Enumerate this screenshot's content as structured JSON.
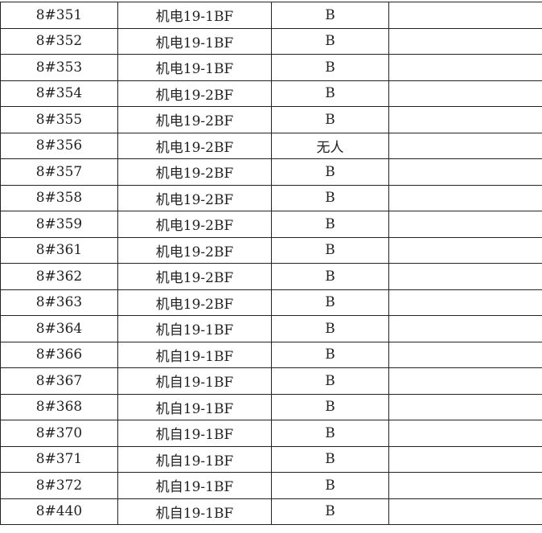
{
  "rows": [
    [
      "8#351",
      "机电19-1BF",
      "B",
      ""
    ],
    [
      "8#352",
      "机电19-1BF",
      "B",
      ""
    ],
    [
      "8#353",
      "机电19-1BF",
      "B",
      ""
    ],
    [
      "8#354",
      "机电19-2BF",
      "B",
      ""
    ],
    [
      "8#355",
      "机电19-2BF",
      "B",
      ""
    ],
    [
      "8#356",
      "机电19-2BF",
      "无人",
      ""
    ],
    [
      "8#357",
      "机电19-2BF",
      "B",
      ""
    ],
    [
      "8#358",
      "机电19-2BF",
      "B",
      ""
    ],
    [
      "8#359",
      "机电19-2BF",
      "B",
      ""
    ],
    [
      "8#361",
      "机电19-2BF",
      "B",
      ""
    ],
    [
      "8#362",
      "机电19-2BF",
      "B",
      ""
    ],
    [
      "8#363",
      "机电19-2BF",
      "B",
      ""
    ],
    [
      "8#364",
      "机自19-1BF",
      "B",
      ""
    ],
    [
      "8#366",
      "机自19-1BF",
      "B",
      ""
    ],
    [
      "8#367",
      "机自19-1BF",
      "B",
      ""
    ],
    [
      "8#368",
      "机自19-1BF",
      "B",
      ""
    ],
    [
      "8#370",
      "机自19-1BF",
      "B",
      ""
    ],
    [
      "8#371",
      "机自19-1BF",
      "B",
      ""
    ],
    [
      "8#372",
      "机自19-1BF",
      "B",
      ""
    ],
    [
      "8#440",
      "机自19-1BF",
      "B",
      ""
    ]
  ]
}
